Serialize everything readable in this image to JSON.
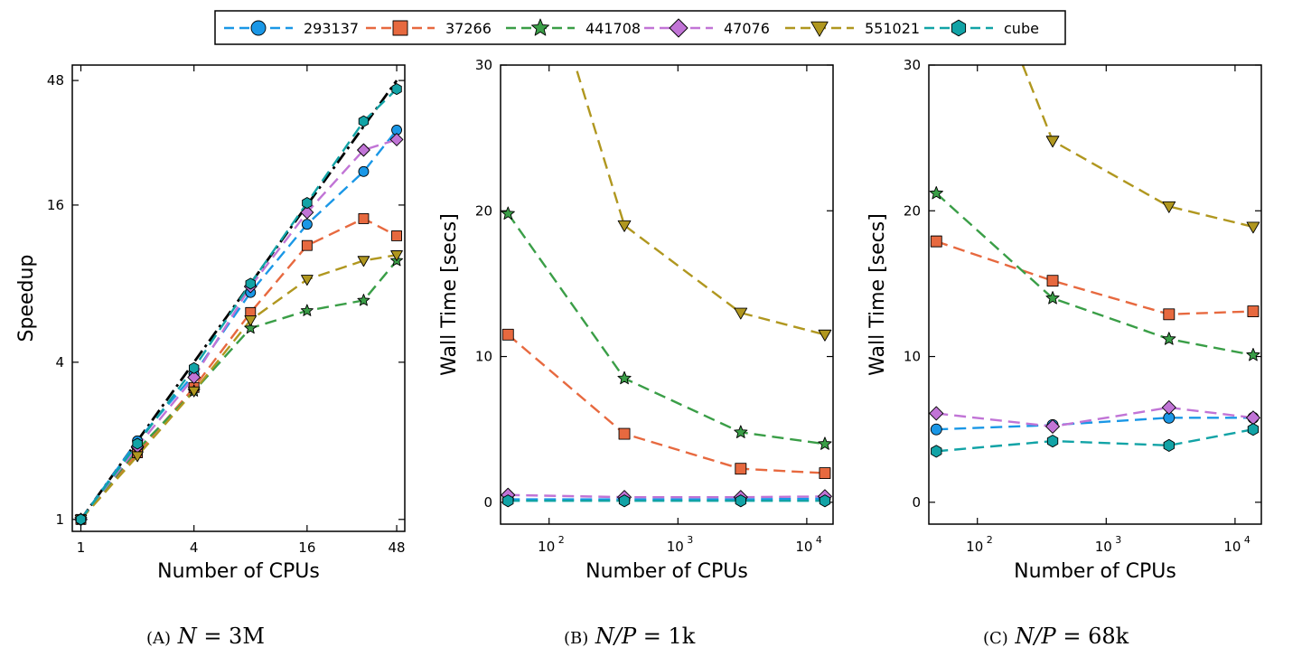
{
  "legend": {
    "entries": [
      {
        "name": "293137",
        "color": "#1a97e6",
        "marker": "circle"
      },
      {
        "name": "37266",
        "color": "#e7693f",
        "marker": "square"
      },
      {
        "name": "441708",
        "color": "#3a9e47",
        "marker": "star"
      },
      {
        "name": "47076",
        "color": "#c174d6",
        "marker": "diamond"
      },
      {
        "name": "551021",
        "color": "#b0971f",
        "marker": "triangle-down"
      },
      {
        "name": "cube",
        "color": "#12a3a6",
        "marker": "hexagon"
      }
    ]
  },
  "captions": {
    "a": {
      "label": "(A)",
      "math": "N",
      "rest": " = 3M"
    },
    "b": {
      "label": "(B)",
      "math": "N/P",
      "rest": " = 1k"
    },
    "c": {
      "label": "(C)",
      "math": "N/P",
      "rest": " = 68k"
    }
  },
  "chart_data": [
    {
      "id": "a",
      "type": "line",
      "xlabel": "Number of CPUs",
      "ylabel": "Speedup",
      "xscale": "log2",
      "yscale": "log2",
      "xlim": [
        0.9,
        53
      ],
      "ylim": [
        0.9,
        55
      ],
      "xticks": [
        1,
        4,
        16,
        48
      ],
      "yticks": [
        1,
        4,
        16,
        48
      ],
      "ideal": {
        "x": [
          1,
          48
        ],
        "y": [
          1,
          48
        ],
        "color": "#000000"
      },
      "series": [
        {
          "name": "293137",
          "x": [
            1,
            2,
            4,
            8,
            16,
            32,
            48
          ],
          "y": [
            1,
            2.0,
            3.6,
            7.4,
            13.5,
            21.5,
            31
          ]
        },
        {
          "name": "37266",
          "x": [
            1,
            2,
            4,
            8,
            16,
            32,
            48
          ],
          "y": [
            1,
            1.8,
            3.2,
            6.2,
            11.2,
            14.2,
            12.2
          ]
        },
        {
          "name": "441708",
          "x": [
            1,
            2,
            4,
            8,
            16,
            32,
            48
          ],
          "y": [
            1,
            1.85,
            3.1,
            5.4,
            6.3,
            6.9,
            9.8
          ]
        },
        {
          "name": "47076",
          "x": [
            1,
            2,
            4,
            8,
            16,
            32,
            48
          ],
          "y": [
            1,
            1.9,
            3.5,
            7.8,
            15.0,
            26.0,
            28.5
          ]
        },
        {
          "name": "551021",
          "x": [
            1,
            2,
            4,
            8,
            16,
            32,
            48
          ],
          "y": [
            1,
            1.75,
            3.1,
            5.8,
            8.3,
            9.8,
            10.3
          ]
        },
        {
          "name": "cube",
          "x": [
            1,
            2,
            4,
            8,
            16,
            32,
            48
          ],
          "y": [
            1,
            1.95,
            3.8,
            8.0,
            16.3,
            33.5,
            44.5
          ]
        }
      ]
    },
    {
      "id": "b",
      "type": "line",
      "xlabel": "Number of CPUs",
      "ylabel": "Wall Time [secs]",
      "xscale": "log10",
      "xlim": [
        42,
        16000
      ],
      "ylim": [
        -1.5,
        30
      ],
      "xticks": [
        100,
        1000,
        10000
      ],
      "xtick_labels": [
        {
          "base": "10",
          "exp": "2"
        },
        {
          "base": "10",
          "exp": "3"
        },
        {
          "base": "10",
          "exp": "4"
        }
      ],
      "yticks": [
        0,
        10,
        20,
        30
      ],
      "series": [
        {
          "name": "293137",
          "x": [
            48,
            384,
            3072,
            13824
          ],
          "y": [
            0.2,
            0.2,
            0.2,
            0.25
          ]
        },
        {
          "name": "37266",
          "x": [
            48,
            384,
            3072,
            13824
          ],
          "y": [
            11.5,
            4.7,
            2.3,
            2.0
          ]
        },
        {
          "name": "441708",
          "x": [
            48,
            384,
            3072,
            13824
          ],
          "y": [
            19.8,
            8.5,
            4.8,
            4.0
          ]
        },
        {
          "name": "47076",
          "x": [
            48,
            384,
            3072,
            13824
          ],
          "y": [
            0.5,
            0.35,
            0.35,
            0.4
          ]
        },
        {
          "name": "551021",
          "x": [
            48,
            384,
            3072,
            13824
          ],
          "y": [
            45,
            19.0,
            13.0,
            11.5
          ]
        },
        {
          "name": "cube",
          "x": [
            48,
            384,
            3072,
            13824
          ],
          "y": [
            0.1,
            0.1,
            0.1,
            0.1
          ]
        }
      ]
    },
    {
      "id": "c",
      "type": "line",
      "xlabel": "Number of CPUs",
      "ylabel": "Wall Time [secs]",
      "xscale": "log10",
      "xlim": [
        42,
        16000
      ],
      "ylim": [
        -1.5,
        30
      ],
      "xticks": [
        100,
        1000,
        10000
      ],
      "xtick_labels": [
        {
          "base": "10",
          "exp": "2"
        },
        {
          "base": "10",
          "exp": "3"
        },
        {
          "base": "10",
          "exp": "4"
        }
      ],
      "yticks": [
        0,
        10,
        20,
        30
      ],
      "series": [
        {
          "name": "293137",
          "x": [
            48,
            384,
            3072,
            13824
          ],
          "y": [
            5.0,
            5.3,
            5.8,
            5.8
          ]
        },
        {
          "name": "37266",
          "x": [
            48,
            384,
            3072,
            13824
          ],
          "y": [
            17.9,
            15.2,
            12.9,
            13.1
          ]
        },
        {
          "name": "441708",
          "x": [
            48,
            384,
            3072,
            13824
          ],
          "y": [
            21.2,
            14.0,
            11.2,
            10.1
          ]
        },
        {
          "name": "47076",
          "x": [
            48,
            384,
            3072,
            13824
          ],
          "y": [
            6.1,
            5.2,
            6.5,
            5.8
          ]
        },
        {
          "name": "551021",
          "x": [
            48,
            384,
            3072,
            13824
          ],
          "y": [
            45,
            24.8,
            20.3,
            18.9
          ]
        },
        {
          "name": "cube",
          "x": [
            48,
            384,
            3072,
            13824
          ],
          "y": [
            3.5,
            4.2,
            3.9,
            5.0
          ]
        }
      ]
    }
  ]
}
